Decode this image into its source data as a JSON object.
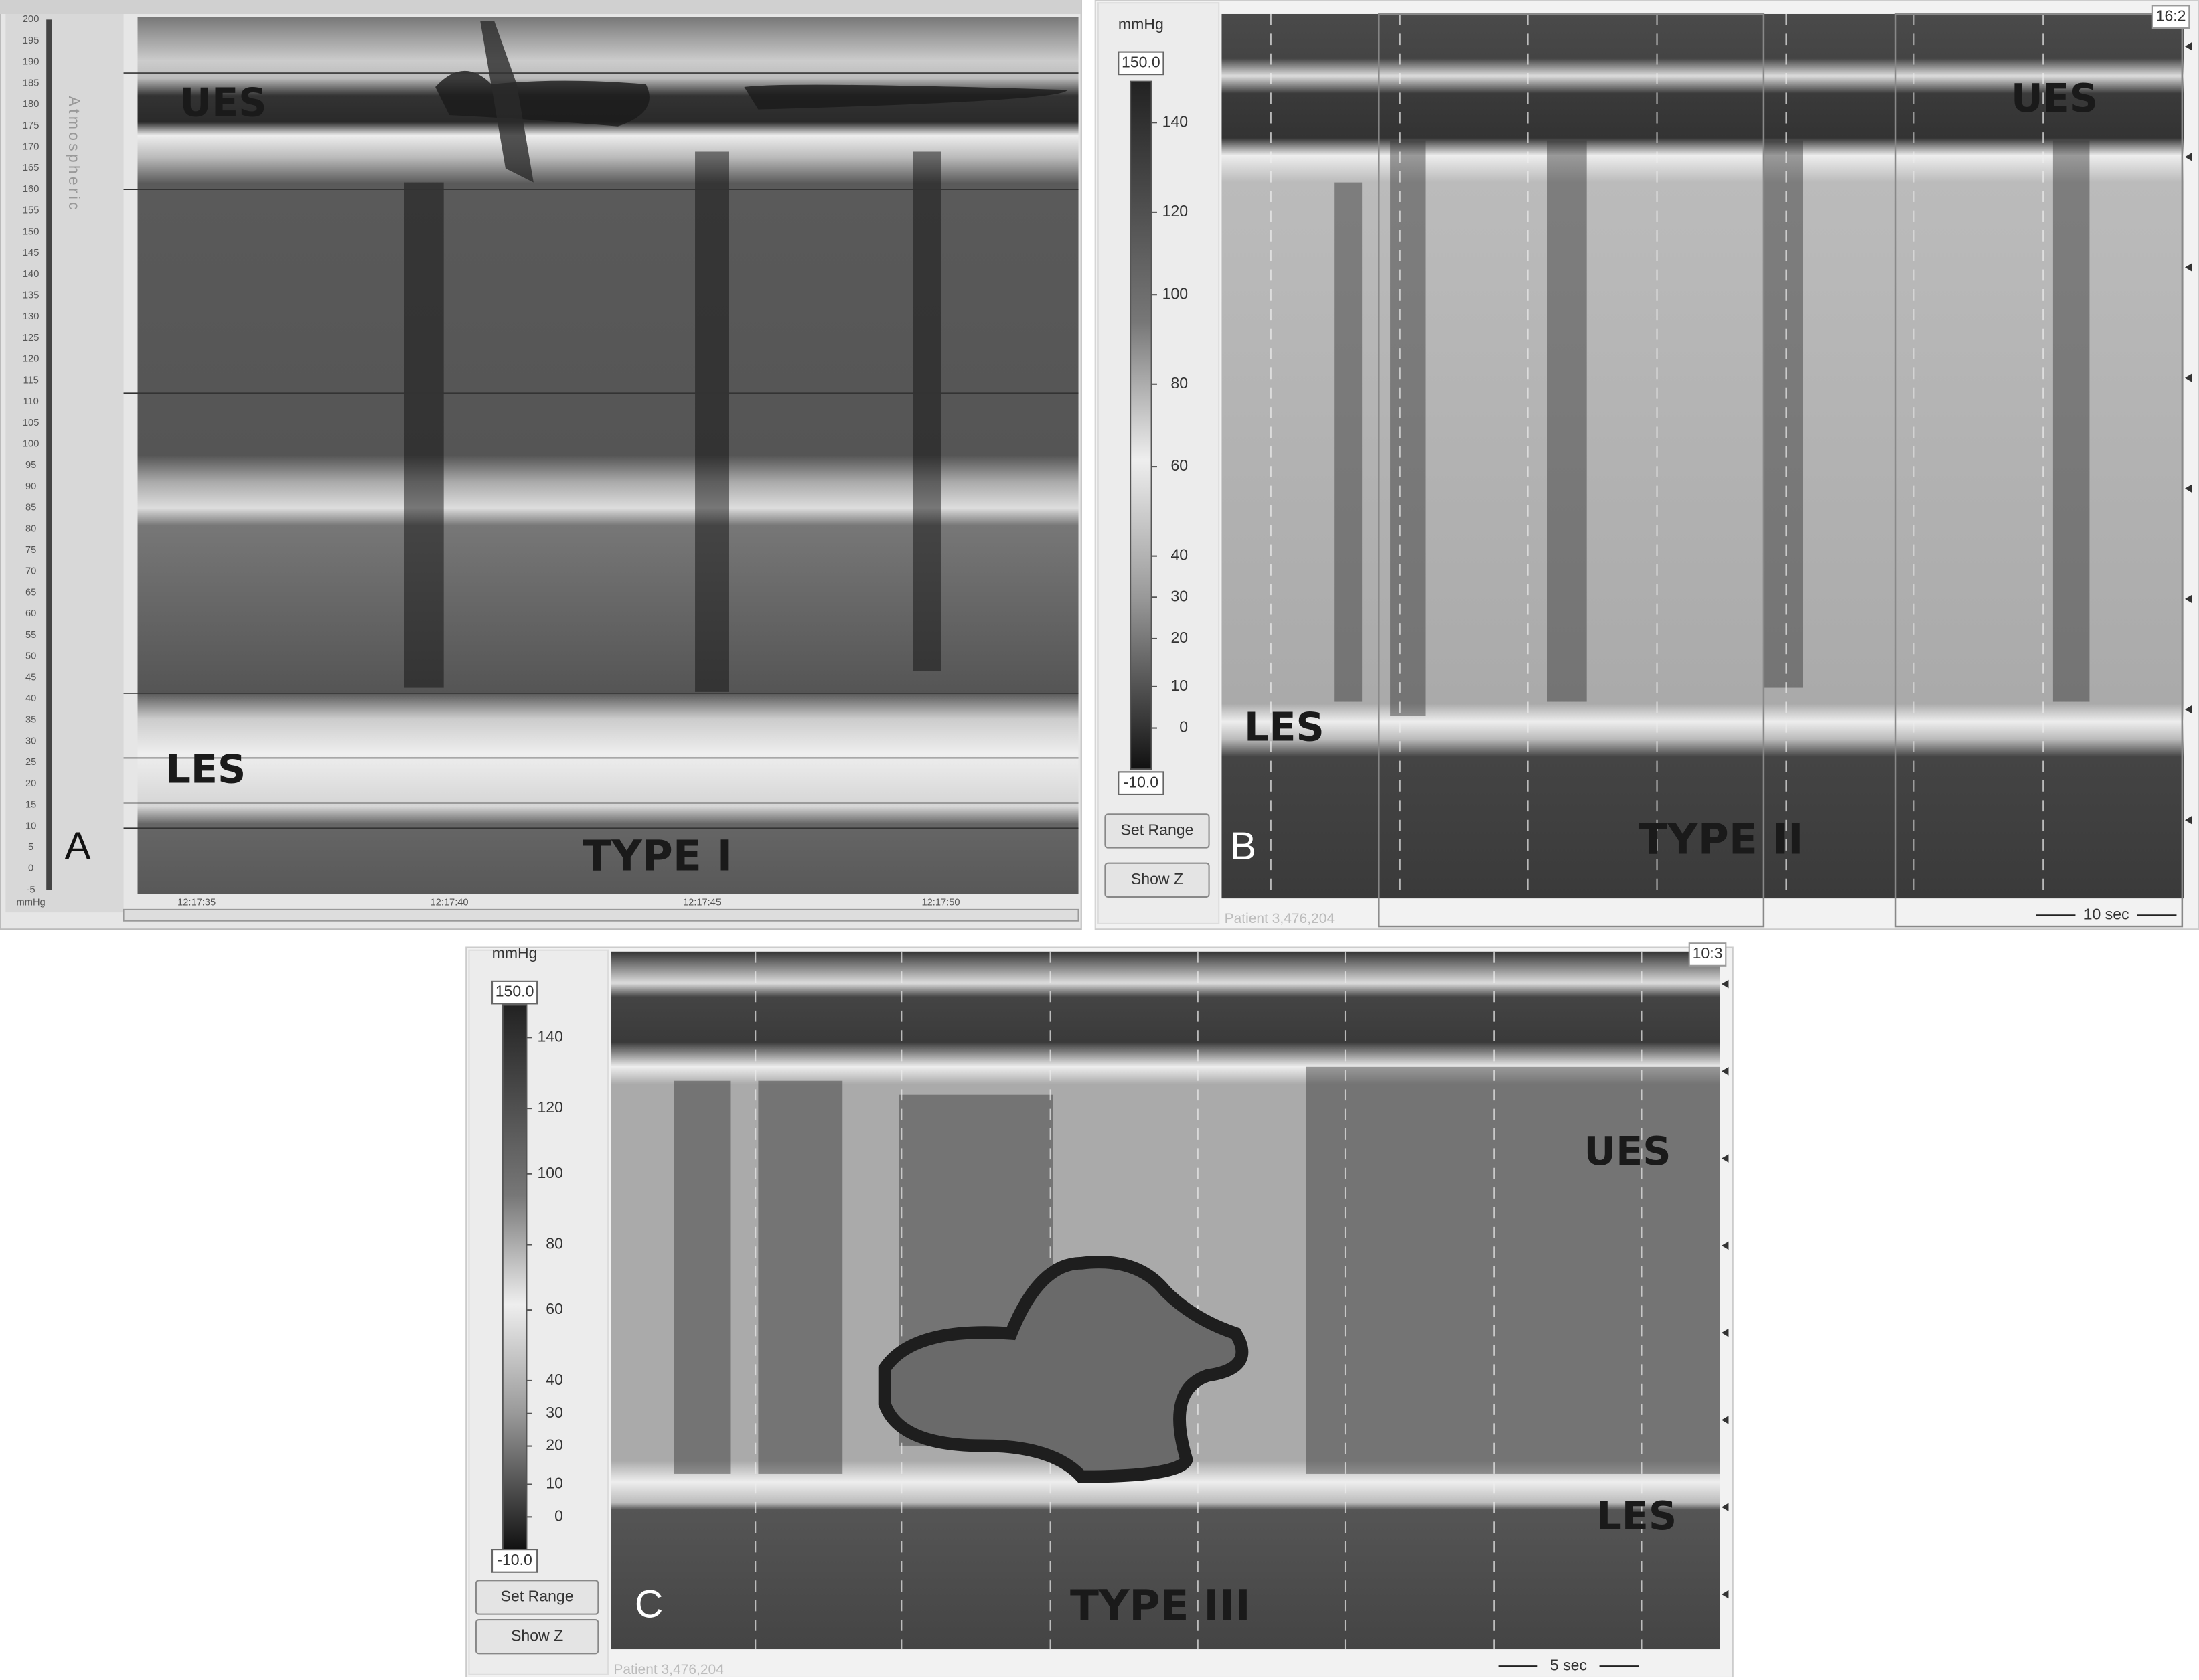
{
  "panels": [
    {
      "label": "A",
      "pattern_label": "TYPE I",
      "ues_label": "UES",
      "les_label": "LES",
      "scale_caption": "Atmospheric",
      "unit": "mmHg",
      "y_ticks": [
        "200",
        "195",
        "190",
        "185",
        "180",
        "175",
        "170",
        "165",
        "160",
        "155",
        "150",
        "145",
        "140",
        "135",
        "130",
        "125",
        "120",
        "115",
        "110",
        "105",
        "100",
        "95",
        "90",
        "85",
        "80",
        "75",
        "70",
        "65",
        "60",
        "55",
        "50",
        "45",
        "40",
        "35",
        "30",
        "25",
        "20",
        "15",
        "10",
        "5",
        "0",
        "-5"
      ],
      "time_labels": [
        "12:17:35",
        "12:17:40",
        "12:17:45",
        "12:17:50"
      ]
    },
    {
      "label": "B",
      "pattern_label": "TYPE II",
      "ues_label": "UES",
      "les_label": "LES",
      "unit": "mmHg",
      "range_max": "150.0",
      "range_min": "-10.0",
      "scale_ticks": [
        "140",
        "120",
        "100",
        "80",
        "60",
        "40",
        "30",
        "20",
        "10",
        "0"
      ],
      "buttons": [
        "Set Range",
        "Show Z"
      ],
      "patient": "Patient 3,476,204",
      "time_scale": "10 sec",
      "clock": "16:2"
    },
    {
      "label": "C",
      "pattern_label": "TYPE III",
      "ues_label": "UES",
      "les_label": "LES",
      "unit": "mmHg",
      "range_max": "150.0",
      "range_min": "-10.0",
      "scale_ticks": [
        "140",
        "120",
        "100",
        "80",
        "60",
        "40",
        "30",
        "20",
        "10",
        "0"
      ],
      "buttons": [
        "Set Range",
        "Show Z"
      ],
      "patient": "Patient 3,476,204",
      "time_scale": "5 sec",
      "clock": "10:3"
    }
  ]
}
